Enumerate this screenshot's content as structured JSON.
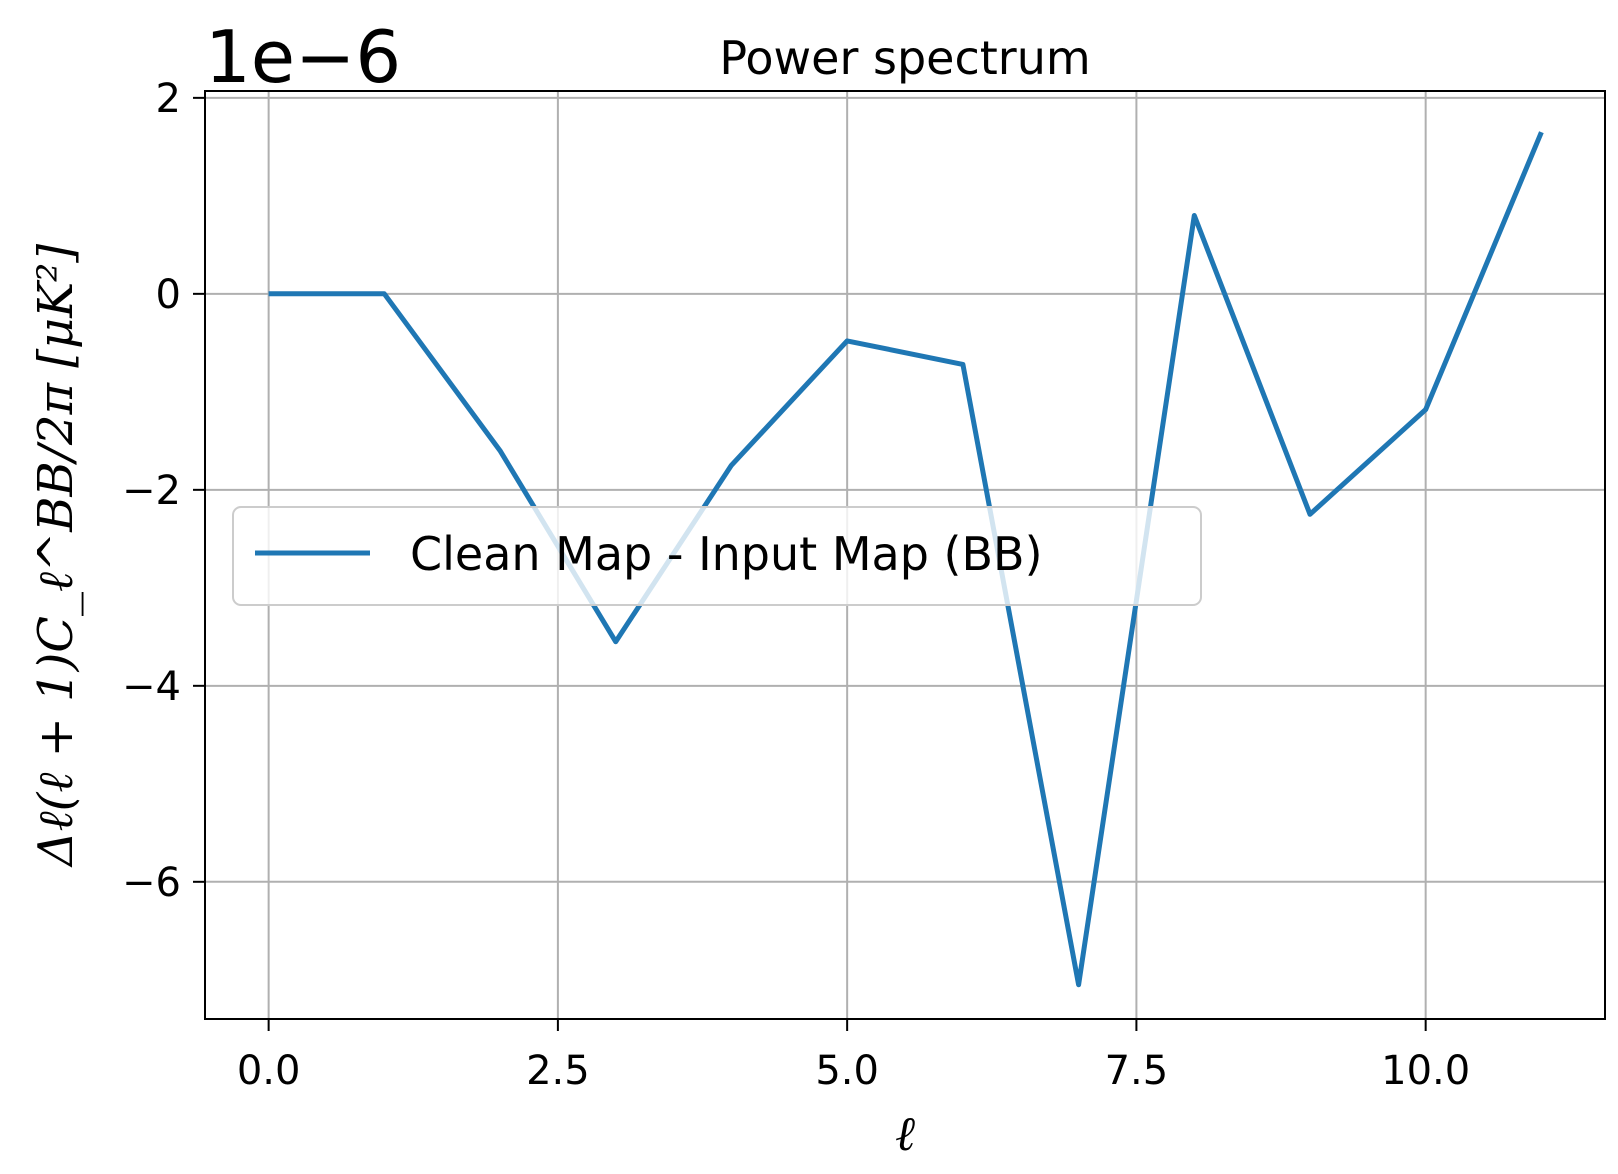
{
  "chart_data": {
    "type": "line",
    "title": "Power spectrum",
    "xlabel": "ℓ",
    "ylabel": "Δℓ(ℓ + 1)C_ℓ^BB/2π [μK²]",
    "y_offset_label": "1e−6",
    "xlim": [
      -0.55,
      11.55
    ],
    "ylim": [
      -7.4,
      2.07
    ],
    "x_ticks": [
      0.0,
      2.5,
      5.0,
      7.5,
      10.0
    ],
    "x_tick_labels": [
      "0.0",
      "2.5",
      "5.0",
      "7.5",
      "10.0"
    ],
    "y_ticks": [
      2,
      0,
      -2,
      -4,
      -6
    ],
    "y_tick_labels": [
      "2",
      "0",
      "−2",
      "−4",
      "−6"
    ],
    "grid": true,
    "legend_position": "center-left",
    "series": [
      {
        "name": "Clean Map - Input Map (BB)",
        "color": "#1f77b4",
        "x": [
          0,
          1,
          2,
          3,
          4,
          5,
          6,
          7,
          8,
          9,
          10,
          11
        ],
        "y": [
          0.0,
          0.0,
          -1.6,
          -3.55,
          -1.75,
          -0.48,
          -0.72,
          -7.05,
          0.8,
          -2.25,
          -1.18,
          1.65
        ]
      }
    ]
  }
}
